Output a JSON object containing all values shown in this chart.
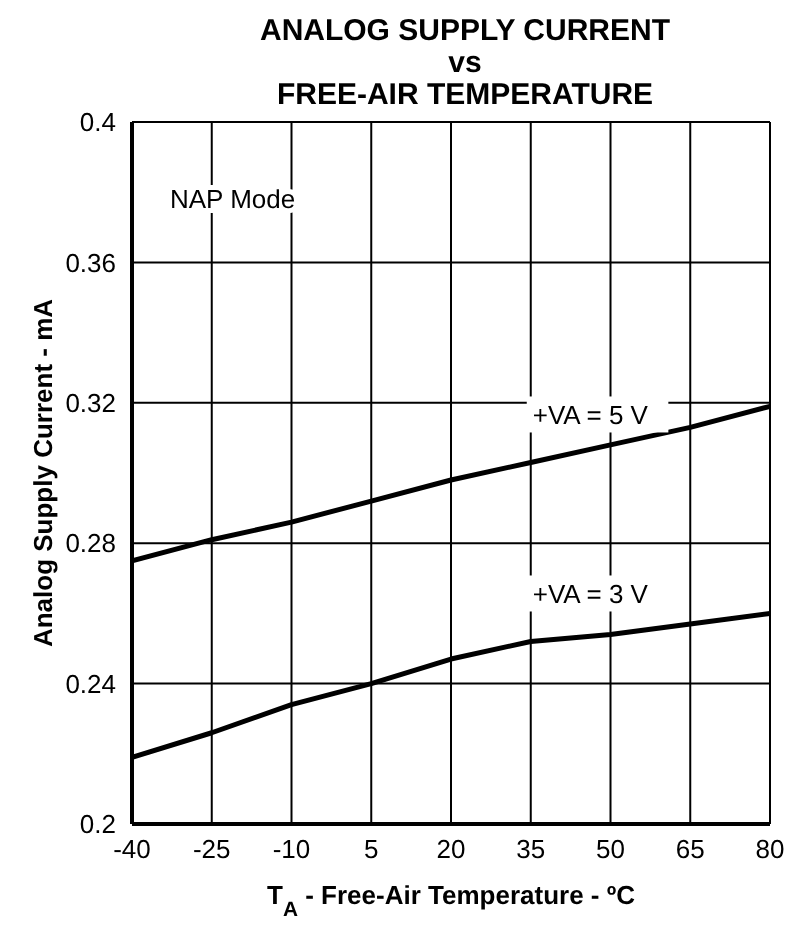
{
  "chart_data": {
    "type": "line",
    "title": "ANALOG SUPPLY CURRENT\nvs\nFREE-AIR TEMPERATURE",
    "xlabel": "T$_{A}$ - Free-Air Temperature - ºC",
    "ylabel": "Analog Supply Current - mA",
    "annotations": [
      "NAP Mode"
    ],
    "x": [
      -40,
      -25,
      -10,
      5,
      20,
      35,
      50,
      65,
      80
    ],
    "series": [
      {
        "name": "+VA = 5 V",
        "color": "#000000",
        "values": [
          0.275,
          0.281,
          0.286,
          0.292,
          0.298,
          0.303,
          0.308,
          0.313,
          0.319
        ]
      },
      {
        "name": "+VA = 3 V",
        "color": "#000000",
        "values": [
          0.219,
          0.226,
          0.234,
          0.24,
          0.247,
          0.252,
          0.254,
          0.257,
          0.26
        ]
      }
    ],
    "xlim": [
      -40,
      80
    ],
    "xticks": [
      -40,
      -25,
      -10,
      5,
      20,
      35,
      50,
      65,
      80
    ],
    "ylim": [
      0.2,
      0.4
    ],
    "yticks": [
      0.2,
      0.24,
      0.28,
      0.32,
      0.36,
      0.4
    ],
    "grid": true,
    "legend": false,
    "marker": "none",
    "line_style": "solid"
  }
}
